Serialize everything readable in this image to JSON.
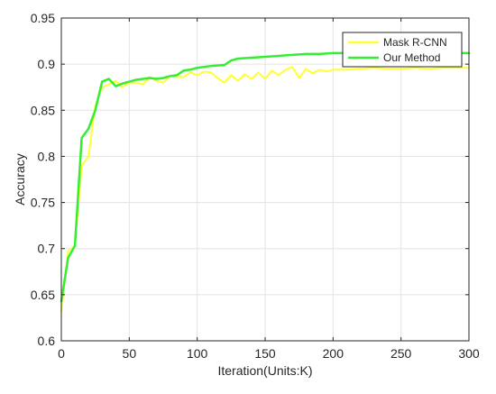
{
  "chart_data": {
    "type": "line",
    "title": "",
    "xlabel": "Iteration(Units:K)",
    "ylabel": "Accuracy",
    "xlim": [
      0,
      300
    ],
    "ylim": [
      0.6,
      0.95
    ],
    "x_ticks": [
      0,
      50,
      100,
      150,
      200,
      250,
      300
    ],
    "x_tick_labels": [
      "0",
      "50",
      "100",
      "150",
      "200",
      "250",
      "300"
    ],
    "y_ticks": [
      0.6,
      0.65,
      0.7,
      0.75,
      0.8,
      0.85,
      0.9,
      0.95
    ],
    "y_tick_labels": [
      "0.6",
      "0.65",
      "0.7",
      "0.75",
      "0.8",
      "0.85",
      "0.9",
      "0.95"
    ],
    "grid": true,
    "legend_position": "top-right",
    "series": [
      {
        "name": "Mask R-CNN",
        "color": "#ffff33",
        "x": [
          0,
          5,
          10,
          15,
          20,
          25,
          30,
          35,
          40,
          45,
          50,
          55,
          60,
          65,
          70,
          75,
          80,
          85,
          90,
          95,
          100,
          105,
          110,
          115,
          120,
          125,
          130,
          135,
          140,
          145,
          150,
          155,
          160,
          165,
          170,
          175,
          180,
          185,
          190,
          195,
          200,
          210,
          220,
          230,
          240,
          250,
          260,
          270,
          280,
          290,
          300
        ],
        "y": [
          0.632,
          0.697,
          0.703,
          0.79,
          0.8,
          0.855,
          0.875,
          0.878,
          0.882,
          0.875,
          0.88,
          0.88,
          0.878,
          0.886,
          0.882,
          0.88,
          0.887,
          0.886,
          0.886,
          0.891,
          0.888,
          0.892,
          0.891,
          0.885,
          0.88,
          0.888,
          0.882,
          0.889,
          0.884,
          0.891,
          0.884,
          0.893,
          0.888,
          0.894,
          0.897,
          0.885,
          0.895,
          0.89,
          0.894,
          0.892,
          0.894,
          0.894,
          0.895,
          0.896,
          0.895,
          0.895,
          0.896,
          0.895,
          0.896,
          0.896,
          0.896
        ]
      },
      {
        "name": "Our Method",
        "color": "#33ee33",
        "x": [
          0,
          5,
          10,
          15,
          20,
          25,
          30,
          35,
          40,
          45,
          50,
          55,
          60,
          65,
          70,
          75,
          80,
          85,
          90,
          95,
          100,
          110,
          120,
          125,
          130,
          140,
          150,
          160,
          170,
          180,
          190,
          200,
          210,
          220,
          230,
          240,
          250,
          260,
          270,
          280,
          290,
          300
        ],
        "y": [
          0.643,
          0.69,
          0.703,
          0.82,
          0.83,
          0.85,
          0.881,
          0.884,
          0.876,
          0.879,
          0.881,
          0.883,
          0.884,
          0.885,
          0.884,
          0.885,
          0.887,
          0.888,
          0.893,
          0.894,
          0.896,
          0.898,
          0.899,
          0.904,
          0.906,
          0.907,
          0.908,
          0.909,
          0.91,
          0.911,
          0.911,
          0.912,
          0.912,
          0.912,
          0.912,
          0.912,
          0.912,
          0.912,
          0.912,
          0.912,
          0.912,
          0.912
        ]
      }
    ]
  }
}
